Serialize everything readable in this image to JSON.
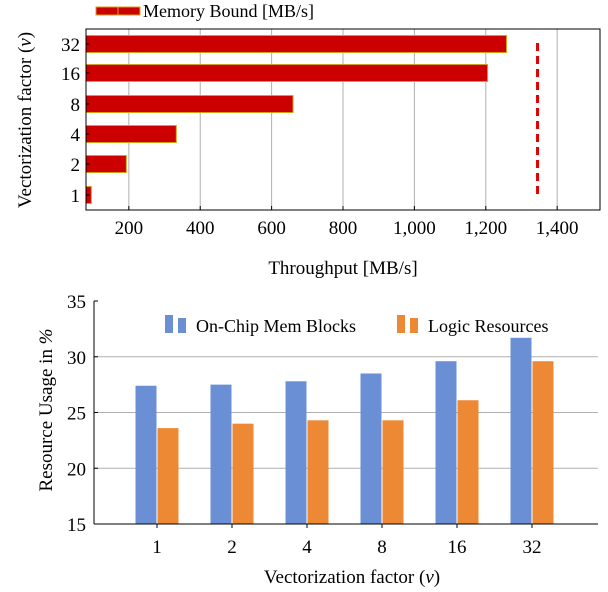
{
  "chart_data": [
    {
      "type": "bar",
      "orientation": "horizontal",
      "xlabel": "Throughput [MB/s]",
      "ylabel": "Vectorization factor (v)",
      "xlim": [
        80,
        1520
      ],
      "xticks": [
        200,
        400,
        600,
        800,
        1000,
        1200,
        1400
      ],
      "xtick_labels": [
        "200",
        "400",
        "600",
        "800",
        "1,000",
        "1,200",
        "1,400"
      ],
      "categories": [
        "32",
        "16",
        "8",
        "4",
        "2",
        "1"
      ],
      "grid": "vertical",
      "legend_position": "top-left",
      "series": [
        {
          "name": "Memory Bound [MB/s]",
          "values": [
            1258,
            1205,
            660,
            333,
            193,
            95
          ],
          "color": "#cc0000",
          "edge_color": "#d4a017"
        }
      ],
      "reference_line": {
        "x": 1345,
        "style": "dashed",
        "color": "#e00000"
      }
    },
    {
      "type": "bar",
      "xlabel": "Vectorization factor (v)",
      "ylabel": "Resource Usage in %",
      "ylim": [
        15,
        35
      ],
      "yticks": [
        15,
        20,
        25,
        30,
        35
      ],
      "ytick_labels": [
        "15",
        "20",
        "25",
        "30",
        "35"
      ],
      "categories": [
        "1",
        "2",
        "4",
        "8",
        "16",
        "32"
      ],
      "grid": "horizontal",
      "legend_position": "top",
      "series": [
        {
          "name": "On-Chip Mem Blocks",
          "values": [
            27.4,
            27.5,
            27.8,
            28.5,
            29.6,
            31.7
          ],
          "color": "#6b8fd4"
        },
        {
          "name": "Logic Resources",
          "values": [
            23.6,
            24.0,
            24.3,
            24.3,
            26.1,
            29.6
          ],
          "color": "#ed8935"
        }
      ]
    }
  ]
}
